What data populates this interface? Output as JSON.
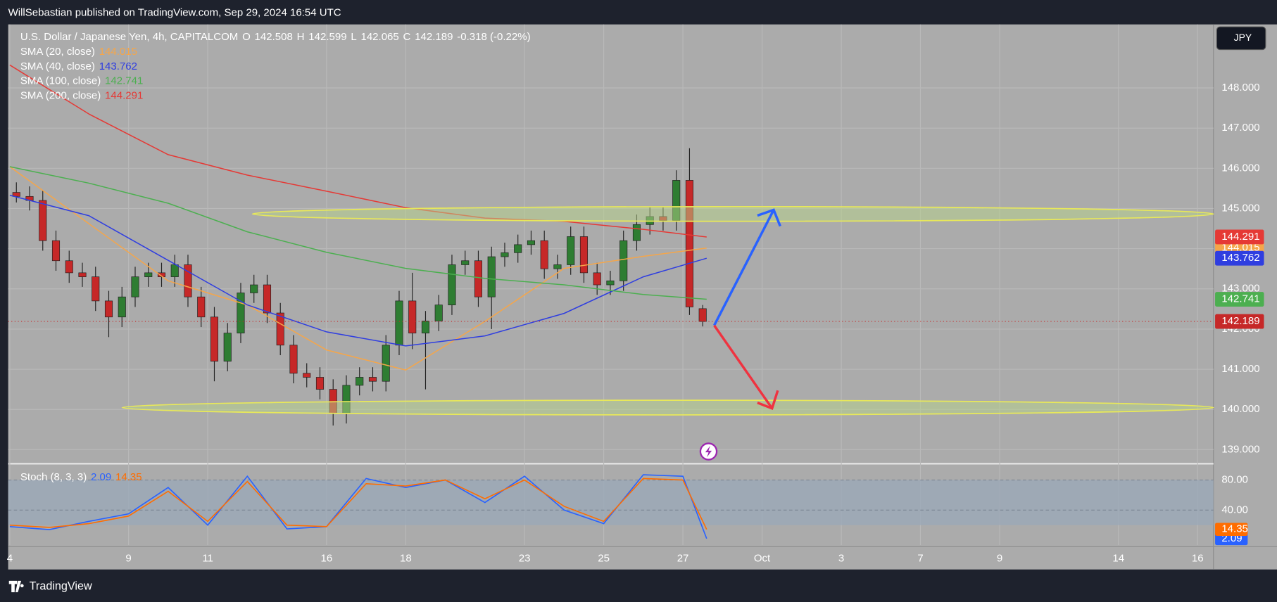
{
  "chart_data": {
    "type": "candlestick",
    "header": "WillSebastian published on TradingView.com, Sep 29, 2024 16:54 UTC",
    "symbol": "U.S. Dollar / Japanese Yen, 4h, CAPITALCOM",
    "legend_keys": [
      "O",
      "H",
      "L",
      "C"
    ],
    "change": "-0.318 (-0.22%)",
    "currency_button": "JPY",
    "brand": "TradingView",
    "up_color": "#2e7d32",
    "down_color": "#c62828",
    "open": [
      145.4,
      145.3,
      145.2,
      144.2,
      143.7,
      143.4,
      143.3,
      142.7,
      142.3,
      142.8,
      143.3,
      143.4,
      143.3,
      143.6,
      142.8,
      142.3,
      141.2,
      141.9,
      142.9,
      143.1,
      142.4,
      141.6,
      140.9,
      140.8,
      140.5,
      139.9,
      140.6,
      140.8,
      140.7,
      141.6,
      142.7,
      141.9,
      142.2,
      142.6,
      143.6,
      143.7,
      142.8,
      143.8,
      143.9,
      144.1,
      144.2,
      143.5,
      143.6,
      144.3,
      143.4,
      143.1,
      143.2,
      144.2,
      144.6,
      144.8,
      144.7,
      145.7,
      142.508
    ],
    "high": [
      145.65,
      145.55,
      145.45,
      144.45,
      143.95,
      143.65,
      143.55,
      142.95,
      143.05,
      143.55,
      143.65,
      143.65,
      143.85,
      143.85,
      143.05,
      142.55,
      142.15,
      143.15,
      143.35,
      143.35,
      142.65,
      141.85,
      141.15,
      141.05,
      140.75,
      140.85,
      141.05,
      141.05,
      141.85,
      142.95,
      143.4,
      142.45,
      142.85,
      143.85,
      143.95,
      143.95,
      144.05,
      144.15,
      144.35,
      144.45,
      144.45,
      143.85,
      144.55,
      144.55,
      143.65,
      143.45,
      144.45,
      144.85,
      145.05,
      145.05,
      145.95,
      146.5,
      142.599
    ],
    "low": [
      145.15,
      144.95,
      143.95,
      143.45,
      143.15,
      143.05,
      142.45,
      141.8,
      142.05,
      142.55,
      143.05,
      143.05,
      143.05,
      142.55,
      142.05,
      140.7,
      140.95,
      141.65,
      142.65,
      142.15,
      141.35,
      140.65,
      140.55,
      140.25,
      139.6,
      139.65,
      140.35,
      140.45,
      140.45,
      141.35,
      141.5,
      140.5,
      141.95,
      142.35,
      143.35,
      142.55,
      142.0,
      143.55,
      143.65,
      143.85,
      143.25,
      143.25,
      143.35,
      143.15,
      142.85,
      142.85,
      142.95,
      143.95,
      144.35,
      144.45,
      144.45,
      142.35,
      142.065
    ],
    "close": [
      145.3,
      145.2,
      144.2,
      143.7,
      143.4,
      143.3,
      142.7,
      142.3,
      142.8,
      143.3,
      143.4,
      143.3,
      143.6,
      142.8,
      142.3,
      141.2,
      141.9,
      142.9,
      143.1,
      142.4,
      141.6,
      140.9,
      140.8,
      140.5,
      139.9,
      140.6,
      140.8,
      140.7,
      141.6,
      142.7,
      141.9,
      142.2,
      142.6,
      143.6,
      143.7,
      142.8,
      143.8,
      143.9,
      144.1,
      144.2,
      143.5,
      143.6,
      144.3,
      143.4,
      143.1,
      143.2,
      144.2,
      144.6,
      144.8,
      144.7,
      145.7,
      142.55,
      142.189
    ],
    "xlim": [
      0,
      30.4
    ],
    "xticks": [
      {
        "value": 0,
        "label": "4"
      },
      {
        "value": 3,
        "label": "9"
      },
      {
        "value": 5,
        "label": "11"
      },
      {
        "value": 8,
        "label": "16"
      },
      {
        "value": 10,
        "label": "18"
      },
      {
        "value": 13,
        "label": "23"
      },
      {
        "value": 15,
        "label": "25"
      },
      {
        "value": 17,
        "label": "27"
      },
      {
        "value": 19,
        "label": "Oct"
      },
      {
        "value": 21,
        "label": "3"
      },
      {
        "value": 23,
        "label": "7"
      },
      {
        "value": 25,
        "label": "9"
      },
      {
        "value": 28,
        "label": "14"
      },
      {
        "value": 30,
        "label": "16"
      }
    ],
    "ylim": [
      138.65,
      149.58
    ],
    "yticks": [
      {
        "value": 139,
        "label": "139.000"
      },
      {
        "value": 140,
        "label": "140.000"
      },
      {
        "value": 141,
        "label": "141.000"
      },
      {
        "value": 142,
        "label": "142.000"
      },
      {
        "value": 143,
        "label": "143.000"
      },
      {
        "value": 144,
        "label": "144.000"
      },
      {
        "value": 145,
        "label": "145.000"
      },
      {
        "value": 146,
        "label": "146.000"
      },
      {
        "value": 147,
        "label": "147.000"
      },
      {
        "value": 148,
        "label": "148.000"
      }
    ],
    "grid": true,
    "sma": {
      "x": [
        0,
        2,
        4,
        6,
        8,
        10,
        12,
        14,
        16,
        17.6
      ],
      "series": [
        {
          "name": "SMA (20, close)",
          "color": "#f5a64a",
          "values": [
            146.04,
            144.62,
            143.2,
            142.6,
            141.48,
            140.98,
            142.19,
            143.51,
            143.81,
            144.015
          ]
        },
        {
          "name": "SMA (40, close)",
          "color": "#2f3ee0",
          "values": [
            145.33,
            144.82,
            143.71,
            142.6,
            141.93,
            141.58,
            141.83,
            142.39,
            143.3,
            143.762
          ]
        },
        {
          "name": "SMA (100, close)",
          "color": "#4caf50",
          "values": [
            146.04,
            145.63,
            145.13,
            144.42,
            143.91,
            143.51,
            143.26,
            143.1,
            142.86,
            142.741
          ]
        },
        {
          "name": "SMA (200, close)",
          "color": "#e53935",
          "values": [
            148.57,
            147.35,
            146.34,
            145.83,
            145.43,
            145.02,
            144.76,
            144.68,
            144.48,
            144.291
          ]
        }
      ]
    },
    "stoch": {
      "name": "Stoch (8, 3, 3)",
      "x": [
        0,
        1,
        2,
        3,
        4,
        5,
        6,
        7,
        8,
        9,
        10,
        11,
        12,
        13,
        14,
        15,
        16,
        17,
        17.6
      ],
      "ylim": [
        -6.5,
        99.5
      ],
      "yticks": [
        {
          "value": 80,
          "label": "80.00"
        },
        {
          "value": 40,
          "label": "40.00"
        }
      ],
      "series": [
        {
          "color": "#2962ff",
          "values": [
            18,
            14,
            25,
            35,
            70,
            20,
            85,
            15,
            18,
            82,
            70,
            80,
            50,
            85,
            40,
            22,
            87,
            85,
            2.09
          ]
        },
        {
          "color": "#ff6d00",
          "values": [
            20,
            17,
            22,
            32,
            65,
            25,
            78,
            20,
            18,
            75,
            72,
            80,
            55,
            80,
            45,
            25,
            82,
            80,
            14.35
          ]
        }
      ]
    }
  }
}
